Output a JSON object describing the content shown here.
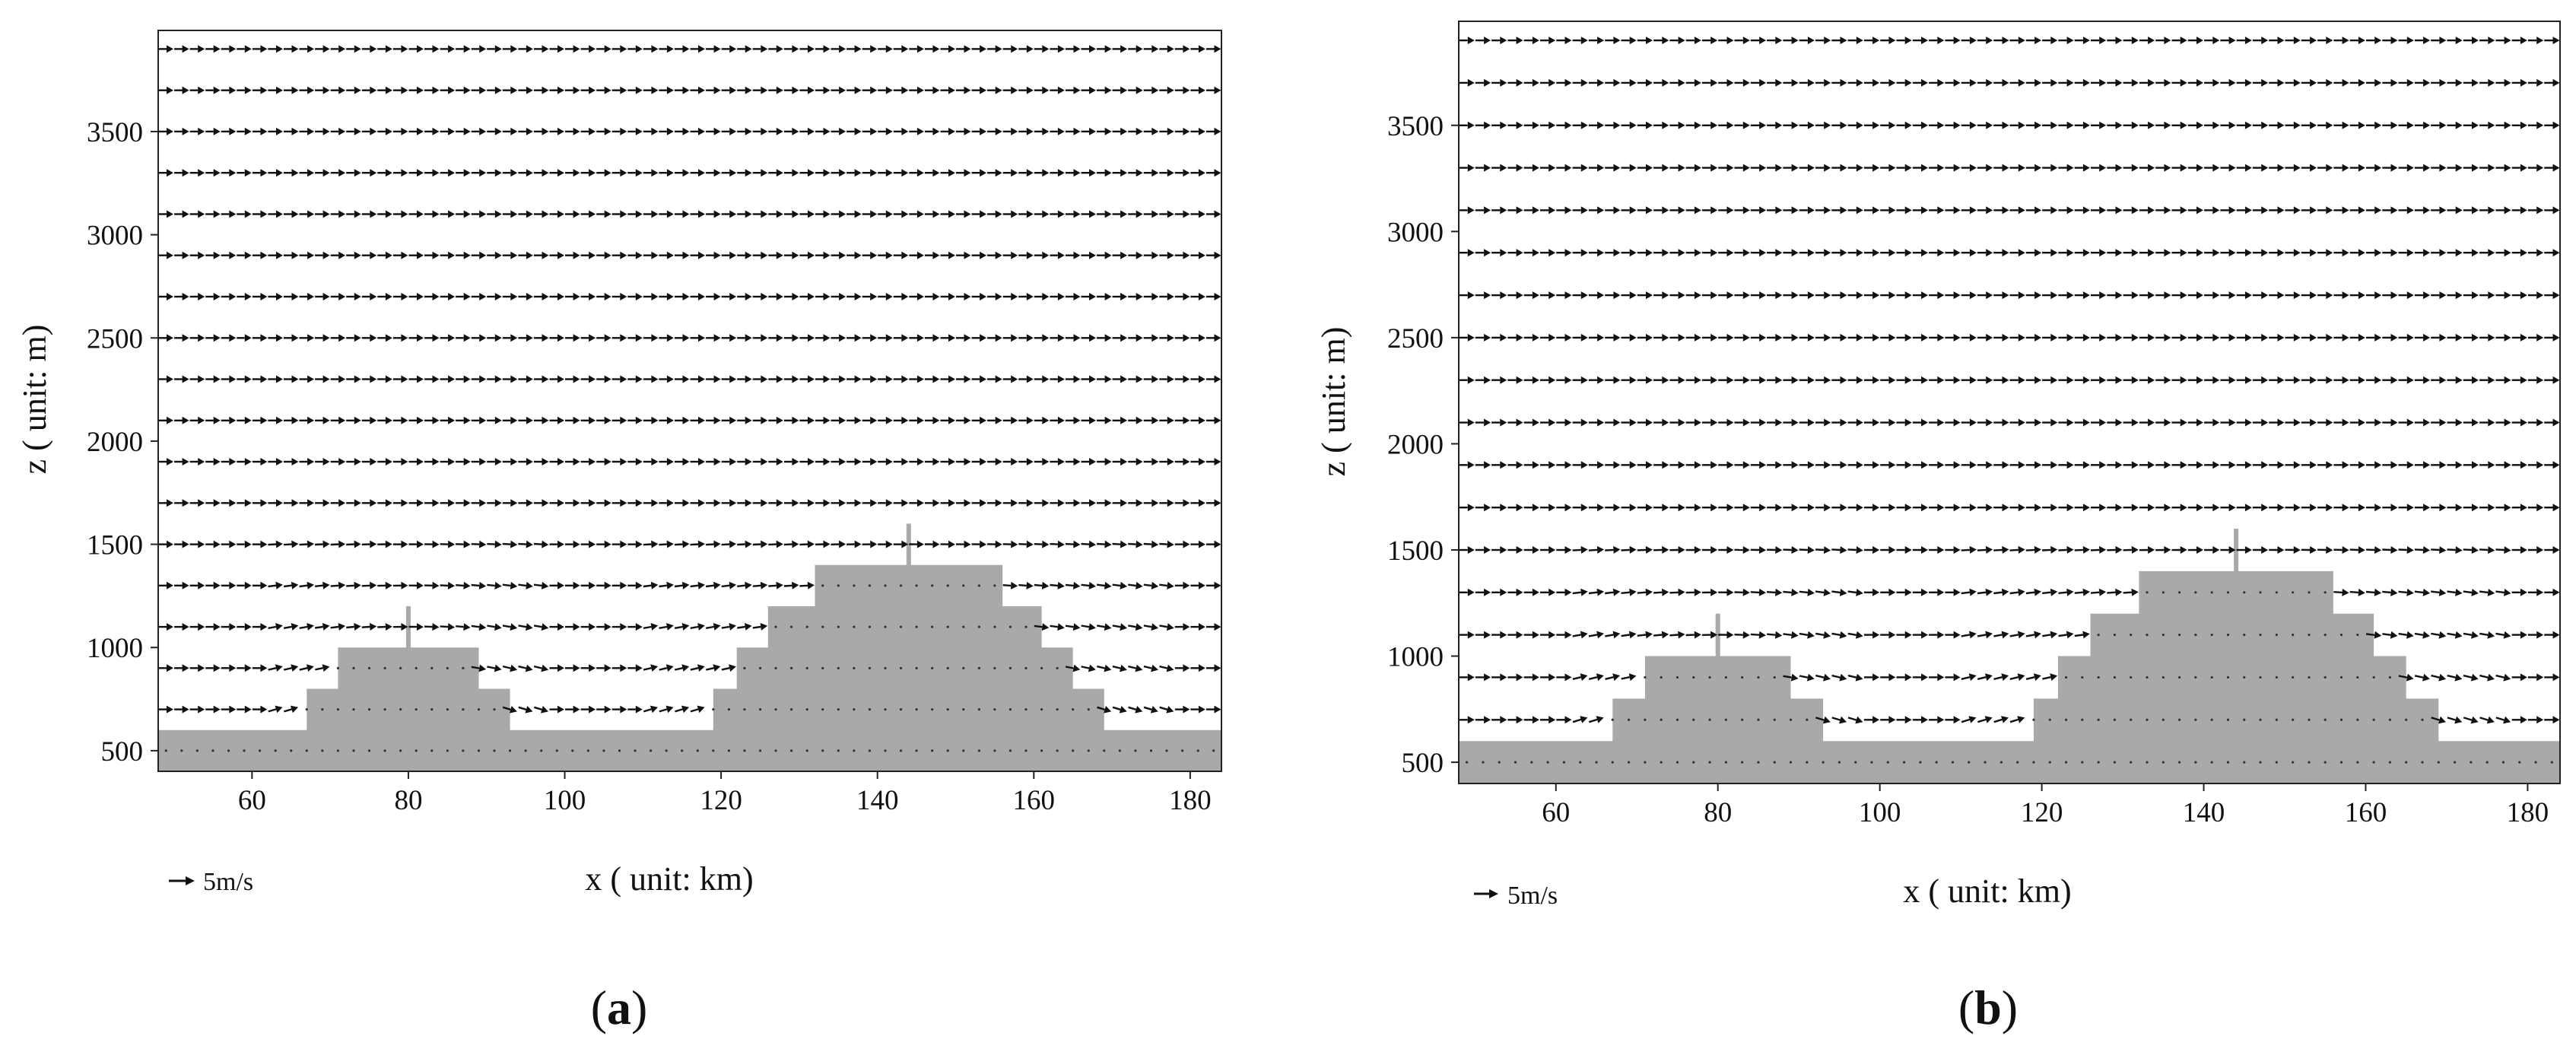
{
  "colors": {
    "terrain": "#a9a9a9",
    "arrow": "#111111",
    "frame": "#222222",
    "terrain_dot": "#333333"
  },
  "panels": [
    {
      "label_open": "(",
      "label_letter": "a",
      "label_close": ")",
      "xlabel": "x ( unit: km)",
      "ylabel": "z ( unit: m)",
      "scale_label": "5m/s"
    },
    {
      "label_open": "(",
      "label_letter": "b",
      "label_close": ")",
      "xlabel": "x ( unit: km)",
      "ylabel": "z ( unit: m)",
      "scale_label": "5m/s"
    }
  ],
  "chart_data": [
    {
      "type": "vector-field",
      "panel": "a",
      "xlabel": "x ( unit: km)",
      "ylabel": "z ( unit: m)",
      "xlim": [
        48,
        184
      ],
      "ylim": [
        400,
        3990
      ],
      "xticks": [
        60,
        80,
        100,
        120,
        140,
        160,
        180
      ],
      "yticks": [
        500,
        1000,
        1500,
        2000,
        2500,
        3000,
        3500
      ],
      "arrow_rows_z": [
        700,
        900,
        1100,
        1300,
        1500,
        1700,
        1900,
        2100,
        2300,
        2500,
        2700,
        2900,
        3100,
        3300,
        3500,
        3700,
        3900
      ],
      "arrow_spacing_x": 2,
      "reference_vector": {
        "speed": 5,
        "unit": "m/s",
        "label": "5m/s"
      },
      "background_wind": "uniform westerly, about 5 m/s",
      "terrain_profile": {
        "x": [
          48,
          67,
          67,
          71,
          71,
          89,
          89,
          93,
          93,
          119,
          119,
          122,
          122,
          126,
          126,
          132,
          132,
          156,
          156,
          161,
          161,
          165,
          165,
          169,
          169,
          184
        ],
        "z": [
          600,
          600,
          800,
          800,
          1000,
          1000,
          800,
          800,
          600,
          600,
          800,
          800,
          1000,
          1000,
          1200,
          1200,
          1400,
          1400,
          1200,
          1200,
          1000,
          1000,
          800,
          800,
          600,
          600
        ]
      },
      "spikes": [
        {
          "x": 80,
          "top": 1200
        },
        {
          "x": 144,
          "top": 1600
        }
      ]
    },
    {
      "type": "vector-field",
      "panel": "b",
      "xlabel": "x ( unit: km)",
      "ylabel": "z ( unit: m)",
      "xlim": [
        48,
        184
      ],
      "ylim": [
        400,
        3990
      ],
      "xticks": [
        60,
        80,
        100,
        120,
        140,
        160,
        180
      ],
      "yticks": [
        500,
        1000,
        1500,
        2000,
        2500,
        3000,
        3500
      ],
      "arrow_rows_z": [
        700,
        900,
        1100,
        1300,
        1500,
        1700,
        1900,
        2100,
        2300,
        2500,
        2700,
        2900,
        3100,
        3300,
        3500,
        3700,
        3900
      ],
      "arrow_spacing_x": 2,
      "reference_vector": {
        "speed": 5,
        "unit": "m/s",
        "label": "5m/s"
      },
      "background_wind": "uniform westerly, about 5 m/s",
      "terrain_profile": {
        "x": [
          48,
          67,
          67,
          71,
          71,
          89,
          89,
          93,
          93,
          119,
          119,
          122,
          122,
          126,
          126,
          132,
          132,
          156,
          156,
          161,
          161,
          165,
          165,
          169,
          169,
          184
        ],
        "z": [
          600,
          600,
          800,
          800,
          1000,
          1000,
          800,
          800,
          600,
          600,
          800,
          800,
          1000,
          1000,
          1200,
          1200,
          1400,
          1400,
          1200,
          1200,
          1000,
          1000,
          800,
          800,
          600,
          600
        ]
      },
      "spikes": [
        {
          "x": 80,
          "top": 1200
        },
        {
          "x": 144,
          "top": 1600
        }
      ]
    }
  ]
}
